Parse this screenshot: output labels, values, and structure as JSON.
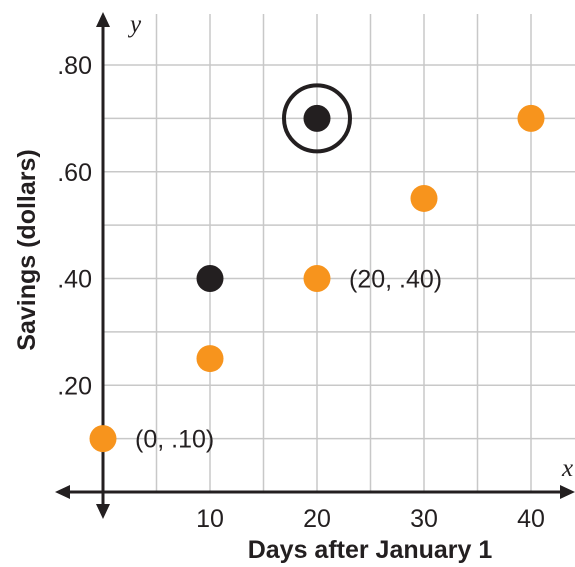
{
  "chart_data": {
    "type": "scatter",
    "title": "",
    "xlabel": "Days after January 1",
    "ylabel": "Savings (dollars)",
    "x_axis_letter": "x",
    "y_axis_letter": "y",
    "xlim": [
      0,
      45
    ],
    "ylim": [
      0,
      0.8
    ],
    "x_ticks": [
      10,
      20,
      30,
      40
    ],
    "x_tick_labels": [
      "10",
      "20",
      "30",
      "40"
    ],
    "y_ticks": [
      0.2,
      0.4,
      0.6,
      0.8
    ],
    "y_tick_labels": [
      ".20",
      ".40",
      ".60",
      ".80"
    ],
    "grid": true,
    "series": [
      {
        "color": "#f7941d",
        "points": [
          {
            "x": 0,
            "y": 0.1
          },
          {
            "x": 10,
            "y": 0.25
          },
          {
            "x": 20,
            "y": 0.4
          },
          {
            "x": 30,
            "y": 0.55
          },
          {
            "x": 40,
            "y": 0.7
          }
        ]
      },
      {
        "color": "#231f20",
        "points": [
          {
            "x": 10,
            "y": 0.4
          },
          {
            "x": 20,
            "y": 0.7
          }
        ]
      }
    ],
    "highlight": {
      "x": 20,
      "y": 0.7,
      "style": "circled"
    },
    "annotations": [
      {
        "text": "(0, .10)",
        "x": 0,
        "y": 0.1
      },
      {
        "text": "(20, .40)",
        "x": 20,
        "y": 0.4
      }
    ]
  }
}
